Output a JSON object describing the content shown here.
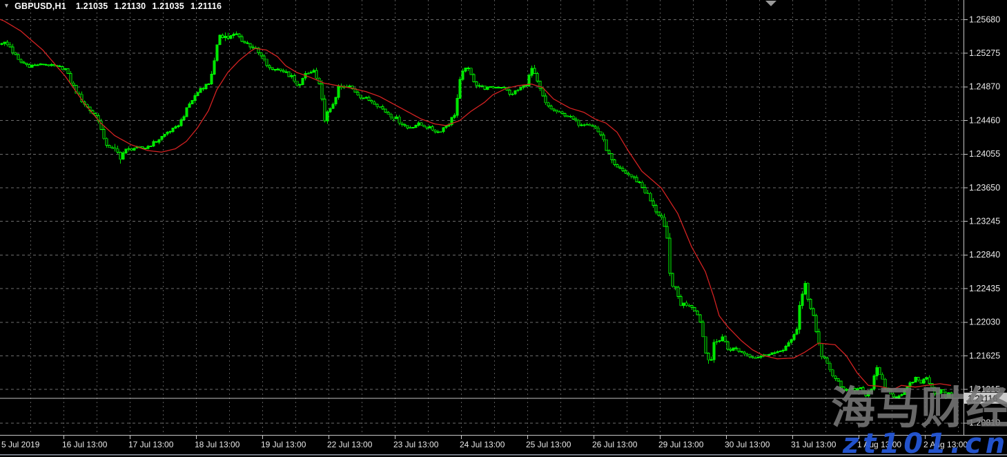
{
  "header": {
    "symbol": "GBPUSD,H1",
    "open": "1.21035",
    "high": "1.21130",
    "low": "1.21035",
    "close": "1.21116"
  },
  "watermark": {
    "main": "海马财经",
    "sub": "zt101.cn"
  },
  "colors": {
    "background": "#000000",
    "grid_h": "#6e6e6e",
    "grid_v": "#5a5a5a",
    "candle": "#00e000",
    "candle_stroke": "#00fa00",
    "bear_fill": "#000000",
    "ma_line": "#d42222",
    "bid_line": "#c4c4c4",
    "axis_border": "#c8c8c8",
    "axis_text": "#e8e8e8",
    "badge_bg": "#cbcbcb",
    "badge_text": "#000000",
    "shift_marker": "#9a9a9a",
    "frame_line": "#8f96a4",
    "watermark_gray": "#767676",
    "watermark_blue": "#2456d6"
  },
  "chart_data": {
    "type": "candlestick",
    "symbol": "GBPUSD",
    "timeframe": "H1",
    "title": "GBPUSD,H1",
    "current_price": 1.21116,
    "ohlc_current": {
      "open": 1.21035,
      "high": 1.2113,
      "low": 1.21035,
      "close": 1.21116
    },
    "indicators": [
      {
        "name": "Moving Average",
        "color": "red"
      }
    ],
    "grid": true,
    "legend_position": "none",
    "bars_per_day": 24,
    "bar_count": 345,
    "y_axis": {
      "ticks": [
        1.2568,
        1.25275,
        1.2487,
        1.2446,
        1.24055,
        1.2365,
        1.23245,
        1.2284,
        1.22435,
        1.2203,
        1.21625,
        1.21215,
        1.2081
      ],
      "visible_min": 1.2067,
      "visible_max": 1.2591
    },
    "x_axis": {
      "tick_labels": [
        "5 Jul 2019",
        "16 Jul 13:00",
        "17 Jul 13:00",
        "18 Jul 13:00",
        "19 Jul 13:00",
        "22 Jul 13:00",
        "23 Jul 13:00",
        "24 Jul 13:00",
        "25 Jul 13:00",
        "26 Jul 13:00",
        "29 Jul 13:00",
        "30 Jul 13:00",
        "31 Jul 13:00",
        "1 Aug 13:00",
        "2 Aug 13:00"
      ]
    },
    "price_path_anchors": [
      [
        0,
        1.2541,
        70
      ],
      [
        3,
        1.2535,
        70
      ],
      [
        6,
        1.2518,
        70
      ],
      [
        10,
        1.2512,
        40
      ],
      [
        15,
        1.2514,
        30
      ],
      [
        20,
        1.2511,
        30
      ],
      [
        23,
        1.2508,
        40
      ],
      [
        25,
        1.2493,
        70
      ],
      [
        28,
        1.2475,
        70
      ],
      [
        31,
        1.2462,
        60
      ],
      [
        35,
        1.2448,
        70
      ],
      [
        37,
        1.2421,
        80
      ],
      [
        40,
        1.2412,
        60
      ],
      [
        43,
        1.2404,
        120
      ],
      [
        45,
        1.241,
        70
      ],
      [
        48,
        1.2413,
        40
      ],
      [
        52,
        1.2413,
        40
      ],
      [
        56,
        1.2421,
        50
      ],
      [
        60,
        1.2432,
        50
      ],
      [
        63,
        1.2437,
        40
      ],
      [
        65,
        1.2446,
        50
      ],
      [
        68,
        1.2466,
        60
      ],
      [
        72,
        1.2485,
        60
      ],
      [
        75,
        1.2491,
        50
      ],
      [
        77,
        1.2516,
        80
      ],
      [
        79,
        1.2551,
        100
      ],
      [
        82,
        1.2546,
        70
      ],
      [
        85,
        1.255,
        60
      ],
      [
        88,
        1.254,
        60
      ],
      [
        91,
        1.2535,
        70
      ],
      [
        94,
        1.2523,
        70
      ],
      [
        97,
        1.2508,
        60
      ],
      [
        101,
        1.2508,
        40
      ],
      [
        105,
        1.2498,
        60
      ],
      [
        107,
        1.2487,
        60
      ],
      [
        110,
        1.2501,
        50
      ],
      [
        113,
        1.2506,
        40
      ],
      [
        115,
        1.2487,
        80
      ],
      [
        117,
        1.245,
        100
      ],
      [
        119,
        1.2458,
        70
      ],
      [
        122,
        1.2485,
        60
      ],
      [
        126,
        1.2487,
        40
      ],
      [
        130,
        1.2475,
        50
      ],
      [
        135,
        1.2468,
        50
      ],
      [
        139,
        1.2457,
        60
      ],
      [
        143,
        1.2448,
        60
      ],
      [
        147,
        1.2437,
        50
      ],
      [
        151,
        1.2442,
        40
      ],
      [
        155,
        1.2437,
        40
      ],
      [
        158,
        1.2432,
        50
      ],
      [
        162,
        1.2443,
        60
      ],
      [
        164,
        1.2454,
        60
      ],
      [
        166,
        1.2491,
        130
      ],
      [
        168,
        1.2512,
        80
      ],
      [
        170,
        1.25,
        70
      ],
      [
        172,
        1.249,
        60
      ],
      [
        175,
        1.2485,
        40
      ],
      [
        178,
        1.2486,
        30
      ],
      [
        182,
        1.2487,
        30
      ],
      [
        184,
        1.2477,
        50
      ],
      [
        187,
        1.2483,
        40
      ],
      [
        190,
        1.249,
        50
      ],
      [
        192,
        1.2508,
        80
      ],
      [
        195,
        1.2483,
        70
      ],
      [
        197,
        1.2466,
        60
      ],
      [
        200,
        1.2458,
        50
      ],
      [
        203,
        1.2454,
        30
      ],
      [
        206,
        1.245,
        40
      ],
      [
        209,
        1.2442,
        50
      ],
      [
        212,
        1.2443,
        40
      ],
      [
        215,
        1.2437,
        40
      ],
      [
        217,
        1.2429,
        50
      ],
      [
        220,
        1.2404,
        80
      ],
      [
        222,
        1.239,
        70
      ],
      [
        225,
        1.2385,
        50
      ],
      [
        228,
        1.2379,
        50
      ],
      [
        231,
        1.2371,
        60
      ],
      [
        234,
        1.2356,
        80
      ],
      [
        236,
        1.2342,
        80
      ],
      [
        239,
        1.2329,
        70
      ],
      [
        241,
        1.23,
        120
      ],
      [
        242,
        1.2259,
        140
      ],
      [
        244,
        1.2242,
        80
      ],
      [
        246,
        1.2225,
        70
      ],
      [
        249,
        1.2225,
        60
      ],
      [
        251,
        1.2219,
        60
      ],
      [
        253,
        1.2205,
        70
      ],
      [
        255,
        1.2167,
        150
      ],
      [
        257,
        1.2159,
        80
      ],
      [
        258,
        1.2176,
        70
      ],
      [
        261,
        1.2186,
        70
      ],
      [
        263,
        1.2171,
        60
      ],
      [
        266,
        1.2171,
        50
      ],
      [
        268,
        1.2167,
        50
      ],
      [
        271,
        1.2163,
        50
      ],
      [
        273,
        1.2161,
        40
      ],
      [
        276,
        1.2163,
        40
      ],
      [
        278,
        1.2166,
        40
      ],
      [
        281,
        1.2166,
        40
      ],
      [
        283,
        1.2171,
        50
      ],
      [
        286,
        1.218,
        60
      ],
      [
        288,
        1.2196,
        80
      ],
      [
        289,
        1.2225,
        100
      ],
      [
        291,
        1.2246,
        120
      ],
      [
        292,
        1.223,
        80
      ],
      [
        294,
        1.2213,
        80
      ],
      [
        295,
        1.2192,
        80
      ],
      [
        297,
        1.2163,
        70
      ],
      [
        299,
        1.2155,
        50
      ],
      [
        301,
        1.2136,
        60
      ],
      [
        303,
        1.2132,
        50
      ],
      [
        305,
        1.2119,
        70
      ],
      [
        307,
        1.2124,
        50
      ],
      [
        309,
        1.2119,
        50
      ],
      [
        311,
        1.2126,
        50
      ],
      [
        313,
        1.2116,
        50
      ],
      [
        315,
        1.2121,
        50
      ],
      [
        317,
        1.215,
        100
      ],
      [
        318,
        1.2138,
        70
      ],
      [
        320,
        1.2126,
        60
      ],
      [
        322,
        1.2117,
        50
      ],
      [
        324,
        1.2113,
        50
      ],
      [
        326,
        1.2117,
        40
      ],
      [
        328,
        1.2124,
        50
      ],
      [
        331,
        1.2136,
        50
      ],
      [
        333,
        1.2131,
        40
      ],
      [
        335,
        1.2136,
        50
      ],
      [
        337,
        1.2126,
        50
      ],
      [
        338,
        1.2117,
        50
      ],
      [
        340,
        1.2121,
        40
      ],
      [
        342,
        1.2113,
        50
      ],
      [
        343,
        1.2117,
        30
      ],
      [
        344,
        1.21116,
        20
      ]
    ],
    "ma_anchors": [
      [
        0,
        1.2568
      ],
      [
        7,
        1.2554
      ],
      [
        15,
        1.2531
      ],
      [
        23,
        1.25
      ],
      [
        30,
        1.2467
      ],
      [
        36,
        1.2443
      ],
      [
        41,
        1.2428
      ],
      [
        47,
        1.2417
      ],
      [
        53,
        1.241
      ],
      [
        58,
        1.2408
      ],
      [
        63,
        1.2412
      ],
      [
        67,
        1.2421
      ],
      [
        71,
        1.2437
      ],
      [
        75,
        1.2458
      ],
      [
        78,
        1.2483
      ],
      [
        82,
        1.2504
      ],
      [
        86,
        1.2518
      ],
      [
        90,
        1.2529
      ],
      [
        92,
        1.2533
      ],
      [
        96,
        1.2531
      ],
      [
        100,
        1.2523
      ],
      [
        103,
        1.2512
      ],
      [
        107,
        1.2504
      ],
      [
        112,
        1.2498
      ],
      [
        117,
        1.2491
      ],
      [
        122,
        1.2488
      ],
      [
        127,
        1.2485
      ],
      [
        132,
        1.2481
      ],
      [
        137,
        1.2475
      ],
      [
        142,
        1.2466
      ],
      [
        147,
        1.2457
      ],
      [
        152,
        1.2448
      ],
      [
        157,
        1.2442
      ],
      [
        161,
        1.244
      ],
      [
        166,
        1.2446
      ],
      [
        170,
        1.2457
      ],
      [
        175,
        1.2468
      ],
      [
        178,
        1.2477
      ],
      [
        183,
        1.2485
      ],
      [
        187,
        1.2488
      ],
      [
        192,
        1.249
      ],
      [
        196,
        1.2486
      ],
      [
        200,
        1.2472
      ],
      [
        206,
        1.2461
      ],
      [
        211,
        1.2456
      ],
      [
        215,
        1.2448
      ],
      [
        219,
        1.2443
      ],
      [
        223,
        1.2432
      ],
      [
        227,
        1.241
      ],
      [
        232,
        1.2385
      ],
      [
        239,
        1.2365
      ],
      [
        245,
        1.2334
      ],
      [
        250,
        1.2294
      ],
      [
        255,
        1.2264
      ],
      [
        258,
        1.2234
      ],
      [
        260,
        1.2211
      ],
      [
        263,
        1.2198
      ],
      [
        268,
        1.2181
      ],
      [
        272,
        1.217
      ],
      [
        276,
        1.2163
      ],
      [
        281,
        1.2159
      ],
      [
        287,
        1.216
      ],
      [
        291,
        1.2167
      ],
      [
        296,
        1.2178
      ],
      [
        302,
        1.2176
      ],
      [
        306,
        1.2163
      ],
      [
        310,
        1.2142
      ],
      [
        314,
        1.2127
      ],
      [
        318,
        1.2126
      ],
      [
        323,
        1.2122
      ],
      [
        326,
        1.2127
      ],
      [
        331,
        1.2125
      ],
      [
        335,
        1.2127
      ],
      [
        340,
        1.2129
      ],
      [
        344,
        1.2127
      ]
    ]
  }
}
